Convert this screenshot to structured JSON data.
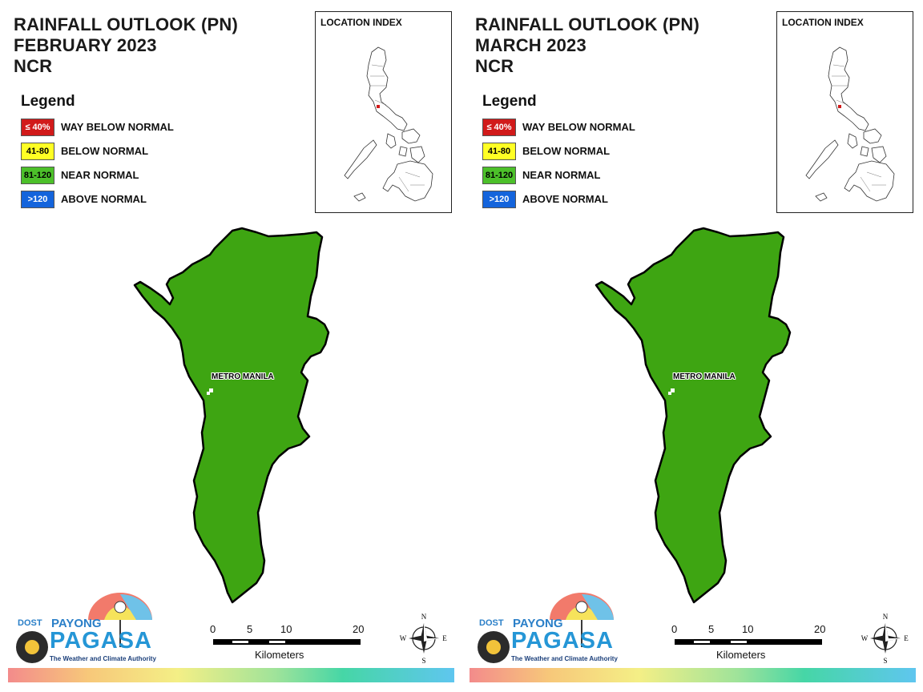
{
  "panels": [
    {
      "title_lines": [
        "RAINFALL OUTLOOK (PN)",
        "FEBRUARY 2023",
        "NCR"
      ],
      "legend": {
        "title": "Legend",
        "items": [
          {
            "code": "≤ 40%",
            "label": "WAY BELOW NORMAL",
            "color": "#d11a1a",
            "text_color": "#ffffff"
          },
          {
            "code": "41-80",
            "label": "BELOW NORMAL",
            "color": "#ffff24",
            "text_color": "#000000"
          },
          {
            "code": "81-120",
            "label": "NEAR NORMAL",
            "color": "#4cc02a",
            "text_color": "#000000"
          },
          {
            "code": ">120",
            "label": "ABOVE NORMAL",
            "color": "#1464dc",
            "text_color": "#ffffff"
          }
        ]
      },
      "location_index": {
        "title": "LOCATION INDEX"
      },
      "map": {
        "region_label": "METRO MANILA",
        "fill": "#3ea512",
        "category": "NEAR NORMAL"
      },
      "scale": {
        "ticks": [
          "0",
          "5",
          "10",
          "20"
        ],
        "unit": "Kilometers"
      },
      "compass": {
        "n": "N",
        "s": "S",
        "e": "E",
        "w": "W"
      },
      "logo": {
        "agency": "DOST",
        "brand_top": "PAYONG",
        "brand_main": "PAGASA",
        "tagline": "The Weather and Climate Authority"
      }
    },
    {
      "title_lines": [
        "RAINFALL OUTLOOK (PN)",
        "MARCH 2023",
        "NCR"
      ],
      "legend": {
        "title": "Legend",
        "items": [
          {
            "code": "≤ 40%",
            "label": "WAY BELOW NORMAL",
            "color": "#d11a1a",
            "text_color": "#ffffff"
          },
          {
            "code": "41-80",
            "label": "BELOW NORMAL",
            "color": "#ffff24",
            "text_color": "#000000"
          },
          {
            "code": "81-120",
            "label": "NEAR NORMAL",
            "color": "#4cc02a",
            "text_color": "#000000"
          },
          {
            "code": ">120",
            "label": "ABOVE NORMAL",
            "color": "#1464dc",
            "text_color": "#ffffff"
          }
        ]
      },
      "location_index": {
        "title": "LOCATION INDEX"
      },
      "map": {
        "region_label": "METRO MANILA",
        "fill": "#3ea512",
        "category": "NEAR NORMAL"
      },
      "scale": {
        "ticks": [
          "0",
          "5",
          "10",
          "20"
        ],
        "unit": "Kilometers"
      },
      "compass": {
        "n": "N",
        "s": "S",
        "e": "E",
        "w": "W"
      },
      "logo": {
        "agency": "DOST",
        "brand_top": "PAYONG",
        "brand_main": "PAGASA",
        "tagline": "The Weather and Climate Authority"
      }
    }
  ]
}
